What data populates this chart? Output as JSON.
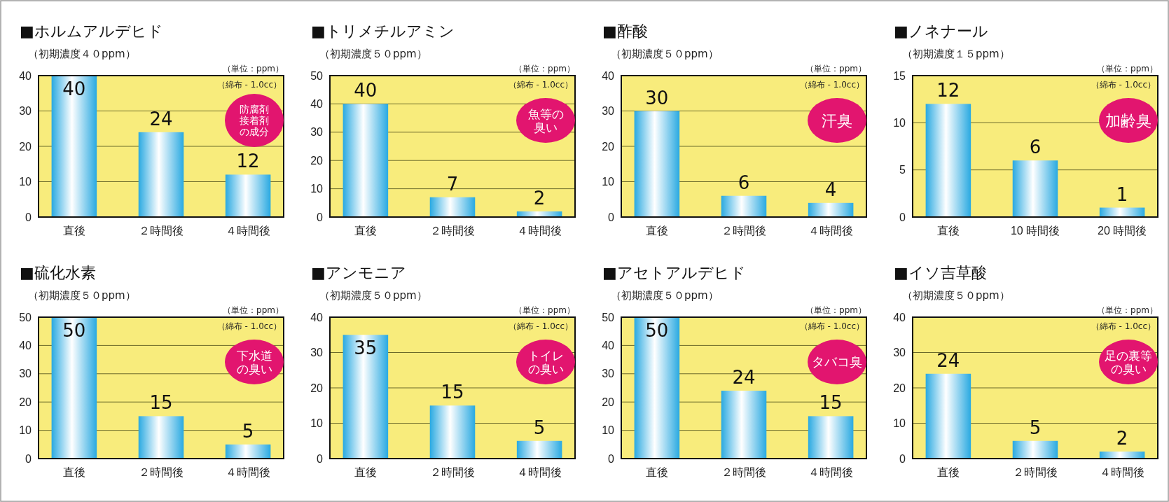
{
  "chart_data": [
    {
      "type": "bar",
      "title": "■ホルムアルデヒド",
      "subtitle": "（初期濃度４０ppm）",
      "categories": [
        "直後",
        "２時間後",
        "４時間後"
      ],
      "series": [
        {
          "color": "#29a9e1",
          "values": [
            40,
            24,
            12
          ]
        }
      ],
      "ylim": [
        0,
        40
      ],
      "yticks": [
        0,
        10,
        20,
        30,
        40
      ],
      "grid": "y",
      "data_labels": true,
      "annotations": [
        "（単位：ppm）",
        "（綿布 - 1.0cc）",
        "防腐剤接着剤の成分"
      ]
    },
    {
      "type": "bar",
      "title": "■トリメチルアミン",
      "subtitle": "（初期濃度５０ppm）",
      "categories": [
        "直後",
        "２時間後",
        "４時間後"
      ],
      "series": [
        {
          "color": "#29a9e1",
          "values": [
            40,
            7,
            2
          ]
        }
      ],
      "ylim": [
        0,
        50
      ],
      "yticks": [
        0,
        10,
        20,
        30,
        40,
        50
      ],
      "grid": "y",
      "data_labels": true,
      "annotations": [
        "（単位：ppm）",
        "（綿布 - 1.0cc）",
        "魚等の臭い"
      ]
    },
    {
      "type": "bar",
      "title": "■酢酸",
      "subtitle": "（初期濃度５０ppm）",
      "categories": [
        "直後",
        "２時間後",
        "４時間後"
      ],
      "series": [
        {
          "color": "#29a9e1",
          "values": [
            30,
            6,
            4
          ]
        }
      ],
      "ylim": [
        0,
        40
      ],
      "yticks": [
        0,
        10,
        20,
        30,
        40
      ],
      "grid": "y",
      "data_labels": true,
      "annotations": [
        "（単位：ppm）",
        "（綿布 - 1.0cc）",
        "汗臭"
      ]
    },
    {
      "type": "bar",
      "title": "■ノネナール",
      "subtitle": "（初期濃度１５ppm）",
      "categories": [
        "直後",
        "10 時間後",
        "20 時間後"
      ],
      "series": [
        {
          "color": "#29a9e1",
          "values": [
            12,
            6,
            1
          ]
        }
      ],
      "ylim": [
        0,
        15
      ],
      "yticks": [
        0,
        5,
        10,
        15
      ],
      "grid": "y",
      "data_labels": true,
      "annotations": [
        "（単位：ppm）",
        "（綿布 - 1.0cc）",
        "加齢臭"
      ]
    },
    {
      "type": "bar",
      "title": "■硫化水素",
      "subtitle": "（初期濃度５０ppm）",
      "categories": [
        "直後",
        "２時間後",
        "４時間後"
      ],
      "series": [
        {
          "color": "#29a9e1",
          "values": [
            50,
            15,
            5
          ]
        }
      ],
      "ylim": [
        0,
        50
      ],
      "yticks": [
        0,
        10,
        20,
        30,
        40,
        50
      ],
      "grid": "y",
      "data_labels": true,
      "annotations": [
        "（単位：ppm）",
        "（綿布 - 1.0cc）",
        "下水道の臭い"
      ]
    },
    {
      "type": "bar",
      "title": "■アンモニア",
      "subtitle": "（初期濃度５０ppm）",
      "categories": [
        "直後",
        "２時間後",
        "４時間後"
      ],
      "series": [
        {
          "color": "#29a9e1",
          "values": [
            35,
            15,
            5
          ]
        }
      ],
      "ylim": [
        0,
        40
      ],
      "yticks": [
        0,
        10,
        20,
        30,
        40
      ],
      "grid": "y",
      "data_labels": true,
      "annotations": [
        "（単位：ppm）",
        "（綿布 - 1.0cc）",
        "トイレの臭い"
      ]
    },
    {
      "type": "bar",
      "title": "■アセトアルデヒド",
      "subtitle": "（初期濃度５０ppm）",
      "categories": [
        "直後",
        "２時間後",
        "４時間後"
      ],
      "series": [
        {
          "color": "#29a9e1",
          "values": [
            50,
            24,
            15
          ]
        }
      ],
      "ylim": [
        0,
        50
      ],
      "yticks": [
        0,
        10,
        20,
        30,
        40,
        50
      ],
      "grid": "y",
      "data_labels": true,
      "annotations": [
        "（単位：ppm）",
        "（綿布 - 1.0cc）",
        "タバコ臭"
      ]
    },
    {
      "type": "bar",
      "title": "■イソ吉草酸",
      "subtitle": "（初期濃度５０ppm）",
      "categories": [
        "直後",
        "２時間後",
        "４時間後"
      ],
      "series": [
        {
          "color": "#29a9e1",
          "values": [
            24,
            5,
            2
          ]
        }
      ],
      "ylim": [
        0,
        40
      ],
      "yticks": [
        0,
        10,
        20,
        30,
        40
      ],
      "grid": "y",
      "data_labels": true,
      "annotations": [
        "（単位：ppm）",
        "（綿布 - 1.0cc）",
        "足の裏等の臭い"
      ]
    }
  ]
}
